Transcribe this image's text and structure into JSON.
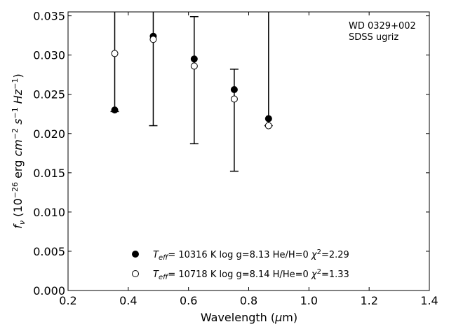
{
  "chart_data": {
    "type": "scatter",
    "xlabel": "Wavelength (μm)",
    "ylabel": "fν (10⁻²⁶ erg cm⁻² s⁻¹ Hz⁻¹)",
    "xlim": [
      0.2,
      1.4
    ],
    "ylim": [
      0.0,
      0.0355
    ],
    "x_ticks": [
      "0.2",
      "0.4",
      "0.6",
      "0.8",
      "1.0",
      "1.2",
      "1.4"
    ],
    "y_ticks": [
      "0.000",
      "0.005",
      "0.010",
      "0.015",
      "0.020",
      "0.025",
      "0.030",
      "0.035"
    ],
    "annotation": [
      "WD 0329+002",
      "SDSS ugriz"
    ],
    "observed_errorbars": [
      {
        "x": 0.355,
        "low": 0.0228,
        "high": 0.0355
      },
      {
        "x": 0.483,
        "low": 0.021,
        "high": 0.0355
      },
      {
        "x": 0.619,
        "low": 0.0187,
        "high": 0.0349
      },
      {
        "x": 0.752,
        "low": 0.0152,
        "high": 0.0282
      },
      {
        "x": 0.866,
        "low": 0.021,
        "high": 0.0355
      }
    ],
    "series": [
      {
        "marker": "filled",
        "legend": "T_eff= 10316 K  log g=8.13  He/H=0  χ²=2.29",
        "x": [
          0.355,
          0.483,
          0.619,
          0.752,
          0.866
        ],
        "y": [
          0.023,
          0.0324,
          0.0295,
          0.0256,
          0.0219
        ]
      },
      {
        "marker": "open",
        "legend": "T_eff= 10718 K  log g=8.14  H/He=0  χ²=1.33",
        "x": [
          0.355,
          0.483,
          0.619,
          0.752,
          0.866
        ],
        "y": [
          0.0302,
          0.032,
          0.0286,
          0.0244,
          0.021
        ]
      }
    ],
    "legend_position": "bottom-center",
    "grid": false
  }
}
